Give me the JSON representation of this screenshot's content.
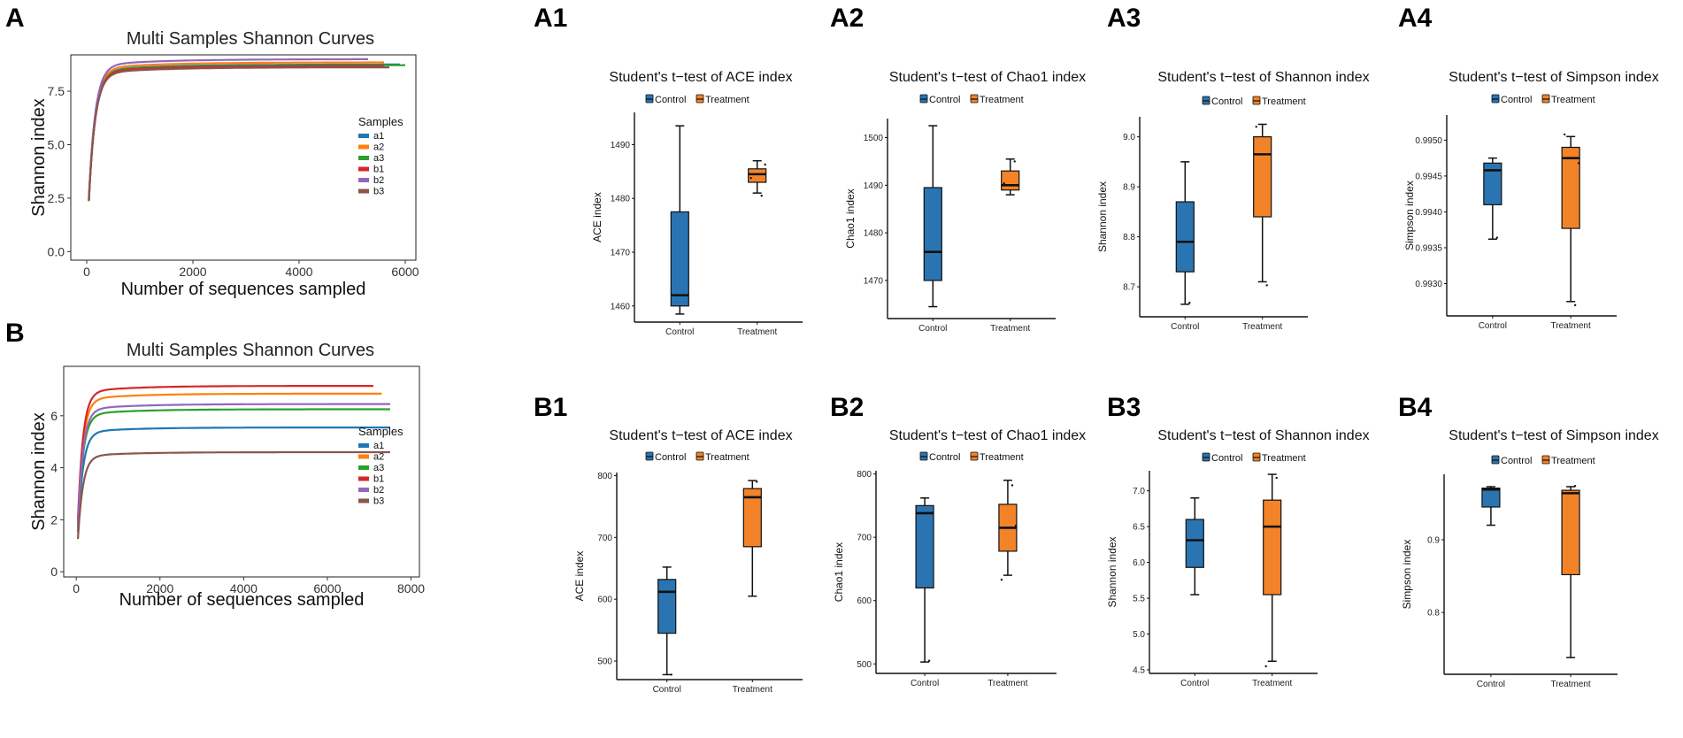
{
  "colors": {
    "a1": "#1f77b4",
    "a2": "#ff7f0e",
    "a3": "#2ca02c",
    "b1": "#d62728",
    "b2": "#9467bd",
    "b3": "#8c564b",
    "control": "#2a74b1",
    "treatment": "#f28329"
  },
  "chart_data": [
    {
      "id": "A",
      "panel_label": "A",
      "type": "line",
      "title": "Multi Samples Shannon Curves",
      "xlabel": "Number of sequences sampled",
      "ylabel": "Shannon index",
      "xlim": [
        -300,
        6200
      ],
      "ylim": [
        -0.4,
        9.2
      ],
      "xticks": [
        0,
        2000,
        4000,
        6000
      ],
      "yticks": [
        0.0,
        2.5,
        5.0,
        7.5
      ],
      "xtick_labels": [
        "0",
        "2000",
        "4000",
        "6000"
      ],
      "ytick_labels": [
        "0.0",
        "2.5",
        "5.0",
        "7.5"
      ],
      "legend_title": "Samples",
      "series": [
        {
          "name": "a1",
          "plateau": 8.75,
          "xmax": 5900
        },
        {
          "name": "a2",
          "plateau": 8.85,
          "xmax": 5600
        },
        {
          "name": "a3",
          "plateau": 8.72,
          "xmax": 6000
        },
        {
          "name": "b1",
          "plateau": 8.68,
          "xmax": 5600
        },
        {
          "name": "b2",
          "plateau": 9.0,
          "xmax": 5300
        },
        {
          "name": "b3",
          "plateau": 8.62,
          "xmax": 5700
        }
      ]
    },
    {
      "id": "B",
      "panel_label": "B",
      "type": "line",
      "title": "Multi Samples Shannon Curves",
      "xlabel": "Number of sequences sampled",
      "ylabel": "Shannon index",
      "xlim": [
        -300,
        8200
      ],
      "ylim": [
        -0.2,
        7.9
      ],
      "xticks": [
        0,
        2000,
        4000,
        6000,
        8000
      ],
      "yticks": [
        0,
        2,
        4,
        6
      ],
      "xtick_labels": [
        "0",
        "2000",
        "4000",
        "6000",
        "8000"
      ],
      "ytick_labels": [
        "0",
        "2",
        "4",
        "6"
      ],
      "legend_title": "Samples",
      "series": [
        {
          "name": "a1",
          "plateau": 5.55,
          "xmax": 7500
        },
        {
          "name": "a2",
          "plateau": 6.85,
          "xmax": 7300
        },
        {
          "name": "a3",
          "plateau": 6.25,
          "xmax": 7500
        },
        {
          "name": "b1",
          "plateau": 7.15,
          "xmax": 7100
        },
        {
          "name": "b2",
          "plateau": 6.45,
          "xmax": 7500
        },
        {
          "name": "b3",
          "plateau": 4.6,
          "xmax": 7500
        }
      ]
    },
    {
      "id": "A1",
      "panel_label": "A1",
      "type": "box",
      "title": "Student's t−test of ACE index",
      "ylabel": "ACE index",
      "categories": [
        "Control",
        "Treatment"
      ],
      "ylim": [
        1457,
        1496
      ],
      "yticks": [
        1460,
        1470,
        1480,
        1490
      ],
      "ytick_labels": [
        "1460",
        "1470",
        "1480",
        "1490"
      ],
      "boxes": [
        {
          "min": 1458.5,
          "q1": 1460,
          "median": 1462,
          "q3": 1477.5,
          "max": 1493.5,
          "points": [
            1462
          ]
        },
        {
          "min": 1481,
          "q1": 1483,
          "median": 1484.5,
          "q3": 1485.5,
          "max": 1487,
          "points": [
            1480.5,
            1483.8,
            1486.3
          ]
        }
      ]
    },
    {
      "id": "A2",
      "panel_label": "A2",
      "type": "box",
      "title": "Student's t−test of Chao1 index",
      "ylabel": "Chao1 index",
      "categories": [
        "Control",
        "Treatment"
      ],
      "ylim": [
        1462,
        1504
      ],
      "yticks": [
        1470,
        1480,
        1490,
        1500
      ],
      "ytick_labels": [
        "1470",
        "1480",
        "1490",
        "1500"
      ],
      "boxes": [
        {
          "min": 1464.5,
          "q1": 1470,
          "median": 1476,
          "q3": 1489.5,
          "max": 1502.5,
          "points": [
            1476
          ]
        },
        {
          "min": 1488,
          "q1": 1489,
          "median": 1490,
          "q3": 1493,
          "max": 1495.5,
          "points": [
            1495,
            1490.4
          ]
        }
      ]
    },
    {
      "id": "A3",
      "panel_label": "A3",
      "type": "box",
      "title": "Student's t−test of Shannon index",
      "ylabel": "Shannon index",
      "categories": [
        "Control",
        "Treatment"
      ],
      "ylim": [
        8.64,
        9.04
      ],
      "yticks": [
        8.7,
        8.8,
        8.9,
        9.0
      ],
      "ytick_labels": [
        "8.7",
        "8.8",
        "8.9",
        "9.0"
      ],
      "boxes": [
        {
          "min": 8.665,
          "q1": 8.73,
          "median": 8.79,
          "q3": 8.87,
          "max": 8.95,
          "points": [
            8.668
          ]
        },
        {
          "min": 8.71,
          "q1": 8.84,
          "median": 8.965,
          "q3": 9.0,
          "max": 9.025,
          "points": [
            8.703,
            9.02
          ]
        }
      ]
    },
    {
      "id": "A4",
      "panel_label": "A4",
      "type": "box",
      "title": "Student's t−test of Simpson index",
      "ylabel": "Simpson index",
      "categories": [
        "Control",
        "Treatment"
      ],
      "ylim": [
        0.99255,
        0.99535
      ],
      "yticks": [
        0.993,
        0.9935,
        0.994,
        0.9945,
        0.995
      ],
      "ytick_labels": [
        "0.9930",
        "0.9935",
        "0.9940",
        "0.9945",
        "0.9950"
      ],
      "boxes": [
        {
          "min": 0.99362,
          "q1": 0.9941,
          "median": 0.99458,
          "q3": 0.99468,
          "max": 0.99475,
          "points": [
            0.99364
          ]
        },
        {
          "min": 0.99275,
          "q1": 0.99377,
          "median": 0.99475,
          "q3": 0.9949,
          "max": 0.99505,
          "points": [
            0.9927,
            0.99508,
            0.99468
          ]
        }
      ]
    },
    {
      "id": "B1",
      "panel_label": "B1",
      "type": "box",
      "title": "Student's t−test of ACE index",
      "ylabel": "ACE index",
      "categories": [
        "Control",
        "Treatment"
      ],
      "ylim": [
        470,
        805
      ],
      "yticks": [
        500,
        600,
        700,
        800
      ],
      "ytick_labels": [
        "500",
        "600",
        "700",
        "800"
      ],
      "boxes": [
        {
          "min": 478,
          "q1": 545,
          "median": 612,
          "q3": 632,
          "max": 652,
          "points": [
            478
          ]
        },
        {
          "min": 605,
          "q1": 685,
          "median": 765,
          "q3": 779,
          "max": 792,
          "points": [
            790
          ]
        }
      ]
    },
    {
      "id": "B2",
      "panel_label": "B2",
      "type": "box",
      "title": "Student's t−test of Chao1 index",
      "ylabel": "Chao1 index",
      "categories": [
        "Control",
        "Treatment"
      ],
      "ylim": [
        485,
        805
      ],
      "yticks": [
        500,
        600,
        700,
        800
      ],
      "ytick_labels": [
        "500",
        "600",
        "700",
        "800"
      ],
      "boxes": [
        {
          "min": 503,
          "q1": 620,
          "median": 738,
          "q3": 750,
          "max": 762,
          "points": [
            505
          ]
        },
        {
          "min": 640,
          "q1": 678,
          "median": 715,
          "q3": 752,
          "max": 790,
          "points": [
            782,
            633,
            718
          ]
        }
      ]
    },
    {
      "id": "B3",
      "panel_label": "B3",
      "type": "box",
      "title": "Student's t−test of Shannon index",
      "ylabel": "Shannon index",
      "categories": [
        "Control",
        "Treatment"
      ],
      "ylim": [
        4.45,
        7.28
      ],
      "yticks": [
        4.5,
        5.0,
        5.5,
        6.0,
        6.5,
        7.0
      ],
      "ytick_labels": [
        "4.5",
        "5.0",
        "5.5",
        "6.0",
        "6.5",
        "7.0"
      ],
      "boxes": [
        {
          "min": 5.55,
          "q1": 5.93,
          "median": 6.31,
          "q3": 6.6,
          "max": 6.9,
          "points": []
        },
        {
          "min": 4.62,
          "q1": 5.55,
          "median": 6.5,
          "q3": 6.87,
          "max": 7.23,
          "points": [
            7.18,
            4.55
          ]
        }
      ]
    },
    {
      "id": "B4",
      "panel_label": "B4",
      "type": "box",
      "title": "Student's t−test of Simpson index",
      "ylabel": "Simpson index",
      "categories": [
        "Control",
        "Treatment"
      ],
      "ylim": [
        0.715,
        0.99
      ],
      "yticks": [
        0.8,
        0.9
      ],
      "ytick_labels": [
        "0.8",
        "0.9"
      ],
      "boxes": [
        {
          "min": 0.92,
          "q1": 0.945,
          "median": 0.969,
          "q3": 0.971,
          "max": 0.973,
          "points": []
        },
        {
          "min": 0.738,
          "q1": 0.852,
          "median": 0.964,
          "q3": 0.968,
          "max": 0.973,
          "points": [
            0.974
          ]
        }
      ]
    }
  ],
  "box_legend": {
    "control_label": "Control",
    "treatment_label": "Treatment"
  }
}
